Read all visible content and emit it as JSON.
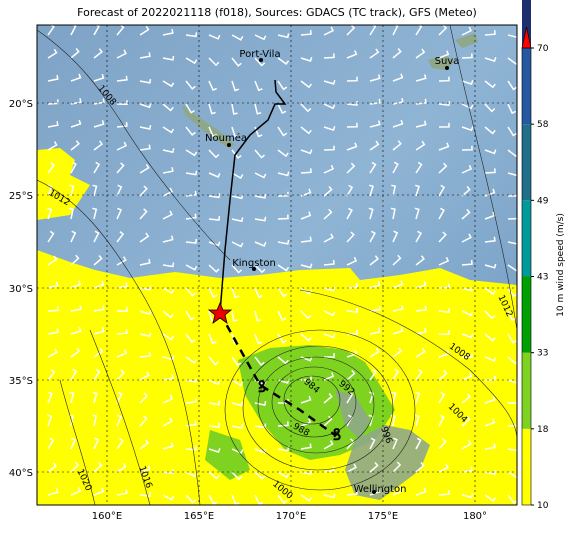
{
  "title": "Forecast of 2022021118 (f018), Sources: GDACS (TC track), GFS (Meteo)",
  "x_axis": {
    "ticks": [
      "160°E",
      "165°E",
      "170°E",
      "175°E",
      "180°"
    ]
  },
  "y_axis": {
    "ticks": [
      "20°S",
      "25°S",
      "30°S",
      "35°S",
      "40°S"
    ]
  },
  "places": [
    "Port-Vila",
    "Suva",
    "Nouméa",
    "Kingston",
    "Wellington"
  ],
  "isobars": [
    "1008",
    "1012",
    "1012",
    "1008",
    "1004",
    "1016",
    "1020",
    "1000",
    "988",
    "984",
    "992",
    "996"
  ],
  "colorbar": {
    "label": "10 m wind speed (m/s)",
    "ticks": [
      10,
      18,
      33,
      43,
      49,
      58,
      70
    ],
    "colors": [
      "#ffff00",
      "#7ed321",
      "#00a000",
      "#009a9a",
      "#1f6f8b",
      "#2558a0",
      "#1e2f6e"
    ]
  }
}
